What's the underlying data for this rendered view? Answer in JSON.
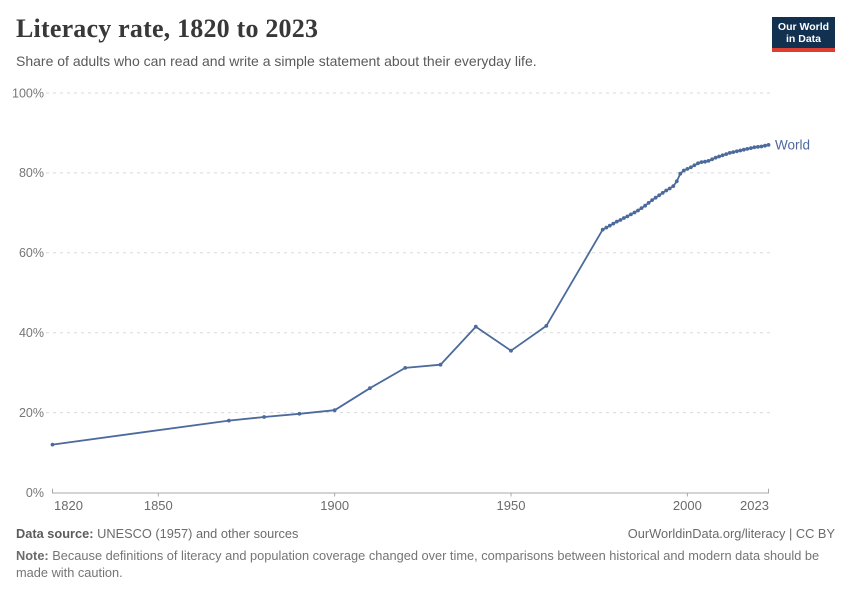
{
  "header": {
    "title": "Literacy rate, 1820 to 2023",
    "subtitle": "Share of adults who can read and write a simple statement about their everyday life.",
    "logo": {
      "line1": "Our World",
      "line2": "in Data",
      "bg_color": "#12304f",
      "accent_color": "#dc3e32"
    }
  },
  "chart_data": {
    "type": "line",
    "title": "Literacy rate, 1820 to 2023",
    "xlabel": "",
    "ylabel": "",
    "xlim": [
      1820,
      2023
    ],
    "ylim": [
      0,
      100
    ],
    "grid": "horizontal-dashed",
    "legend_position": "end-of-line-label",
    "x_ticks": [
      {
        "value": 1820,
        "label": "1820"
      },
      {
        "value": 1850,
        "label": "1850"
      },
      {
        "value": 1900,
        "label": "1900"
      },
      {
        "value": 1950,
        "label": "1950"
      },
      {
        "value": 2000,
        "label": "2000"
      },
      {
        "value": 2023,
        "label": "2023"
      }
    ],
    "y_ticks": [
      {
        "value": 0,
        "label": "0%"
      },
      {
        "value": 20,
        "label": "20%"
      },
      {
        "value": 40,
        "label": "40%"
      },
      {
        "value": 60,
        "label": "60%"
      },
      {
        "value": 80,
        "label": "80%"
      },
      {
        "value": 100,
        "label": "100%"
      }
    ],
    "series": [
      {
        "name": "World",
        "color": "#4c6a9c",
        "points": [
          [
            1820,
            12.0
          ],
          [
            1870,
            18.0
          ],
          [
            1880,
            18.9
          ],
          [
            1890,
            19.7
          ],
          [
            1900,
            20.6
          ],
          [
            1910,
            26.1
          ],
          [
            1920,
            31.2
          ],
          [
            1930,
            32.0
          ],
          [
            1940,
            41.5
          ],
          [
            1950,
            35.5
          ],
          [
            1960,
            41.7
          ],
          [
            1976,
            65.8
          ],
          [
            1977,
            66.3
          ],
          [
            1978,
            66.8
          ],
          [
            1979,
            67.3
          ],
          [
            1980,
            67.8
          ],
          [
            1981,
            68.2
          ],
          [
            1982,
            68.7
          ],
          [
            1983,
            69.1
          ],
          [
            1984,
            69.6
          ],
          [
            1985,
            70.1
          ],
          [
            1986,
            70.6
          ],
          [
            1987,
            71.2
          ],
          [
            1988,
            71.8
          ],
          [
            1989,
            72.5
          ],
          [
            1990,
            73.2
          ],
          [
            1991,
            73.8
          ],
          [
            1992,
            74.4
          ],
          [
            1993,
            75.0
          ],
          [
            1994,
            75.6
          ],
          [
            1995,
            76.1
          ],
          [
            1996,
            76.7
          ],
          [
            1997,
            77.9
          ],
          [
            1998,
            79.8
          ],
          [
            1999,
            80.6
          ],
          [
            2000,
            81.0
          ],
          [
            2001,
            81.4
          ],
          [
            2002,
            81.9
          ],
          [
            2003,
            82.4
          ],
          [
            2004,
            82.7
          ],
          [
            2005,
            82.8
          ],
          [
            2006,
            83.0
          ],
          [
            2007,
            83.4
          ],
          [
            2008,
            83.8
          ],
          [
            2009,
            84.1
          ],
          [
            2010,
            84.4
          ],
          [
            2011,
            84.7
          ],
          [
            2012,
            85.0
          ],
          [
            2013,
            85.2
          ],
          [
            2014,
            85.4
          ],
          [
            2015,
            85.6
          ],
          [
            2016,
            85.8
          ],
          [
            2017,
            86.0
          ],
          [
            2018,
            86.2
          ],
          [
            2019,
            86.4
          ],
          [
            2020,
            86.5
          ],
          [
            2021,
            86.6
          ],
          [
            2022,
            86.8
          ],
          [
            2023,
            87.0
          ]
        ]
      }
    ]
  },
  "footer": {
    "data_source_label": "Data source:",
    "data_source_value": " UNESCO (1957) and other sources",
    "credit": "OurWorldinData.org/literacy | CC BY",
    "note_label": "Note:",
    "note_value": " Because definitions of literacy and population coverage changed over time, comparisons between historical and modern data should be made with caution."
  }
}
